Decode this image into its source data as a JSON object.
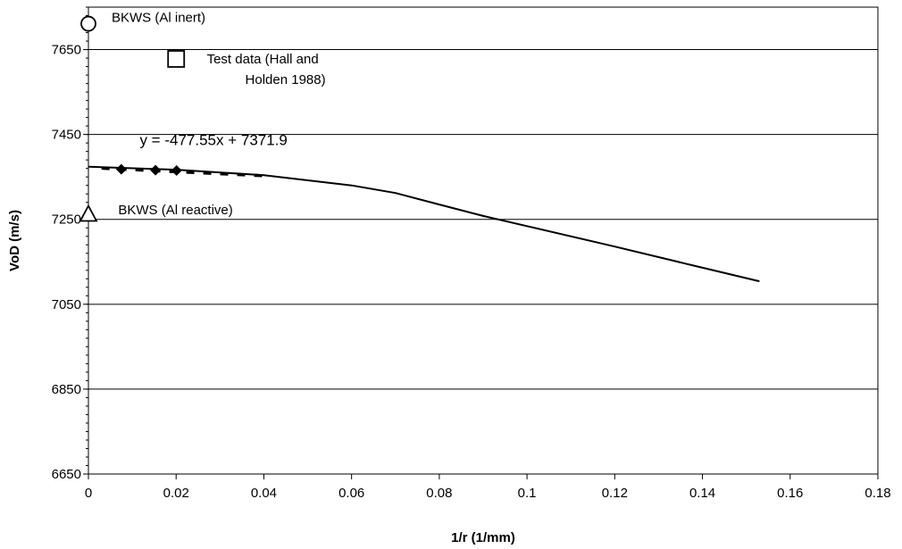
{
  "chart_data": {
    "type": "line",
    "title": "",
    "xlabel": "1/r (1/mm)",
    "ylabel": "VoD (m/s)",
    "xlim": [
      0,
      0.18
    ],
    "ylim": [
      6650,
      7750
    ],
    "x_ticks": [
      0,
      0.02,
      0.04,
      0.06,
      0.08,
      0.1,
      0.12,
      0.14,
      0.16,
      0.18
    ],
    "x_tick_labels": [
      "0",
      "0.02",
      "0.04",
      "0.06",
      "0.08",
      "0.1",
      "0.12",
      "0.14",
      "0.16",
      "0.18"
    ],
    "y_ticks": [
      6650,
      6850,
      7050,
      7250,
      7450,
      7650
    ],
    "y_tick_labels": [
      "6650",
      "6850",
      "7050",
      "7250",
      "7450",
      "7650"
    ],
    "grid": "horizontal",
    "legend": "none",
    "series": [
      {
        "kind": "line",
        "style": "solid",
        "color": "#000000",
        "points": [
          [
            0.0,
            7374
          ],
          [
            0.02,
            7367
          ],
          [
            0.04,
            7354
          ],
          [
            0.06,
            7330
          ],
          [
            0.07,
            7312
          ],
          [
            0.08,
            7285
          ],
          [
            0.09,
            7258
          ],
          [
            0.1,
            7234
          ],
          [
            0.12,
            7186
          ],
          [
            0.14,
            7136
          ],
          [
            0.153,
            7104
          ]
        ]
      },
      {
        "kind": "scatter",
        "marker": "diamond",
        "color": "#000000",
        "points": [
          [
            0.0075,
            7368
          ],
          [
            0.0153,
            7366
          ],
          [
            0.0201,
            7365
          ]
        ]
      },
      {
        "kind": "trendline",
        "style": "dashed",
        "color": "#000000",
        "points": [
          [
            0.003,
            7370.5
          ],
          [
            0.04,
            7352.8
          ]
        ]
      },
      {
        "kind": "scatter",
        "marker": "circle-open",
        "color": "#000000",
        "points": [
          [
            0.0,
            7711
          ]
        ]
      },
      {
        "kind": "scatter",
        "marker": "square-open",
        "color": "#000000",
        "points": [
          [
            0.02,
            7628
          ]
        ]
      },
      {
        "kind": "scatter",
        "marker": "triangle-open",
        "color": "#000000",
        "points": [
          [
            0.0,
            7261
          ]
        ]
      }
    ],
    "annotations": [
      {
        "id": "bkws-inert",
        "lines": [
          "BKWS (Al inert)"
        ],
        "at": [
          0.0053,
          7715
        ]
      },
      {
        "id": "test-data",
        "lines": [
          "Test data (Hall and",
          "Holden 1988)"
        ],
        "at": [
          0.027,
          7618
        ]
      },
      {
        "id": "equation",
        "lines": [
          "y = -477.55x + 7371.9"
        ],
        "at": [
          0.0117,
          7425
        ]
      },
      {
        "id": "bkws-reactive",
        "lines": [
          "BKWS (Al reactive)"
        ],
        "at": [
          0.0068,
          7262
        ]
      }
    ]
  }
}
